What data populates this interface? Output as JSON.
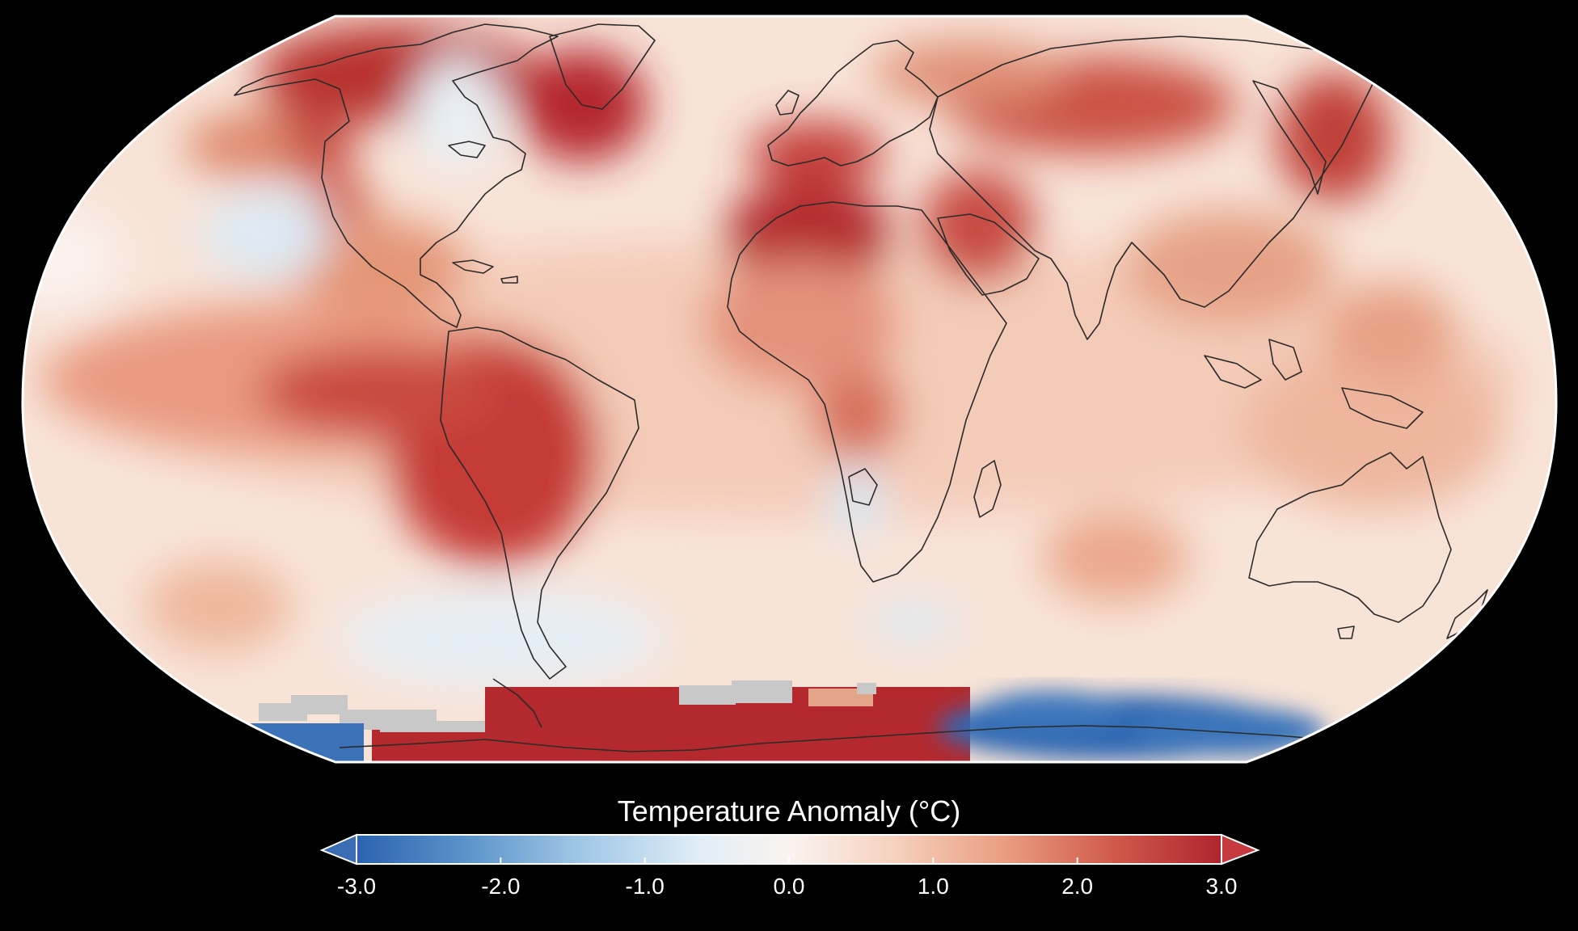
{
  "legend": {
    "title": "Temperature Anomaly (°C)",
    "ticks": [
      "-3.0",
      "-2.0",
      "-1.0",
      "0.0",
      "1.0",
      "2.0",
      "3.0"
    ],
    "range": [
      -3.0,
      3.0
    ],
    "extend": "both",
    "colormap": [
      "#2c63b0",
      "#5a93c9",
      "#9cc4e4",
      "#e2eef7",
      "#faf3ef",
      "#f6d2bf",
      "#ea9d80",
      "#cf5a4b",
      "#b0252e"
    ]
  },
  "map": {
    "projection": "Robinson",
    "background": "#000000",
    "ocean_land_base": "#f8e6dc",
    "no_data_color": "#c8c8c8",
    "coastline_color": "#222222"
  }
}
